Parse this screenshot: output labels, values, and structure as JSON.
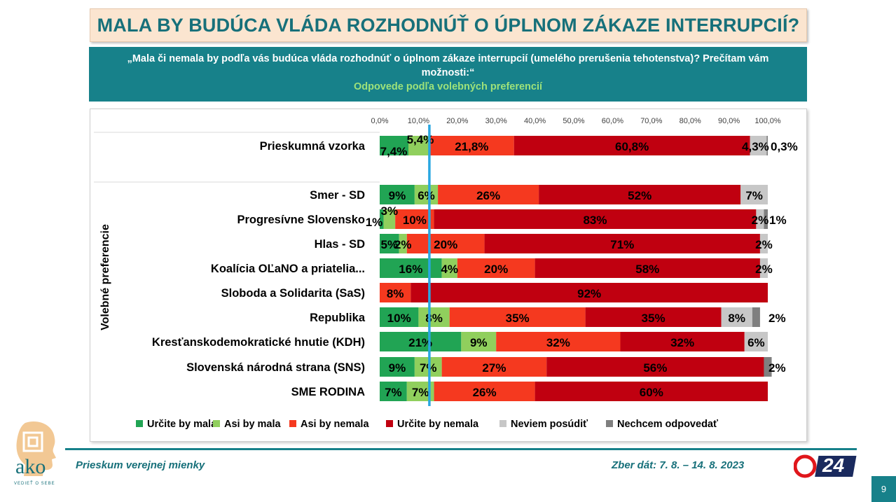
{
  "header": {
    "title": "MALA BY BUDÚCA VLÁDA ROZHODNÚŤ O ÚPLNOM ZÁKAZE INTERRUPCIÍ?",
    "question": "„Mala či nemala by podľa vás budúca vláda rozhodnúť o úplnom zákaze interrupcií (umelého prerušenia tehotenstva)? Prečítam vám možnosti:“",
    "subtitle": "Odpovede podľa volebných preferencií"
  },
  "chart_data": {
    "type": "bar",
    "orientation": "horizontal",
    "stacked": true,
    "xlim": [
      0,
      100
    ],
    "x_ticks": [
      "0,0%",
      "10,0%",
      "20,0%",
      "30,0%",
      "40,0%",
      "50,0%",
      "60,0%",
      "70,0%",
      "80,0%",
      "90,0%",
      "100,0%"
    ],
    "ylabel": "Volebné preferencie",
    "reference_line_x": 12.8,
    "legend_position": "bottom",
    "series": [
      {
        "name": "Určite by mala",
        "color": "#21a454"
      },
      {
        "name": "Asi by mala",
        "color": "#90cf5d"
      },
      {
        "name": "Asi by nemala",
        "color": "#f5391f"
      },
      {
        "name": "Určite by nemala",
        "color": "#c00010"
      },
      {
        "name": "Neviem posúdiť",
        "color": "#c7c7c7"
      },
      {
        "name": "Nechcem odpovedať",
        "color": "#7f7f7f"
      }
    ],
    "rows": [
      {
        "category": "Prieskumná vzorka",
        "values": [
          7.4,
          5.4,
          21.8,
          60.8,
          4.3,
          0.3
        ],
        "labels": [
          "7,4%",
          "5,4%",
          "21,8%",
          "60,8%",
          "4,3%",
          "0,3%"
        ]
      },
      {
        "category": "Smer - SD",
        "values": [
          9,
          6,
          26,
          52,
          7,
          0
        ],
        "labels": [
          "9%",
          "6%",
          "26%",
          "52%",
          "7%",
          ""
        ]
      },
      {
        "category": "Progresívne Slovensko",
        "values": [
          1,
          3,
          10,
          83,
          2,
          1
        ],
        "labels": [
          "1%",
          "3%",
          "10%",
          "83%",
          "2%",
          "1%"
        ]
      },
      {
        "category": "Hlas - SD",
        "values": [
          5,
          2,
          20,
          71,
          2,
          0
        ],
        "labels": [
          "5%",
          "2%",
          "20%",
          "71%",
          "2%",
          ""
        ]
      },
      {
        "category": "Koalícia OĽaNO a priatelia...",
        "values": [
          16,
          4,
          20,
          58,
          2,
          0
        ],
        "labels": [
          "16%",
          "4%",
          "20%",
          "58%",
          "2%",
          ""
        ]
      },
      {
        "category": "Sloboda a Solidarita (SaS)",
        "values": [
          0,
          0,
          8,
          92,
          0,
          0
        ],
        "labels": [
          "",
          "",
          "8%",
          "92%",
          "",
          ""
        ]
      },
      {
        "category": "Republika",
        "values": [
          10,
          8,
          35,
          35,
          8,
          2
        ],
        "labels": [
          "10%",
          "8%",
          "35%",
          "35%",
          "8%",
          "2%"
        ]
      },
      {
        "category": "Kresťanskodemokratické hnutie (KDH)",
        "values": [
          21,
          9,
          32,
          32,
          6,
          0
        ],
        "labels": [
          "21%",
          "9%",
          "32%",
          "32%",
          "6%",
          ""
        ]
      },
      {
        "category": "Slovenská národná strana (SNS)",
        "values": [
          9,
          7,
          27,
          56,
          0,
          2
        ],
        "labels": [
          "9%",
          "7%",
          "27%",
          "56%",
          "",
          "2%"
        ]
      },
      {
        "category": "SME RODINA",
        "values": [
          7,
          7,
          26,
          60,
          0,
          0
        ],
        "labels": [
          "7%",
          "7%",
          "26%",
          "60%",
          "",
          ""
        ]
      }
    ]
  },
  "footer": {
    "left": "Prieskum verejnej mienky",
    "right": "Zber dát: 7. 8. – 14. 8. 2023",
    "page": "9",
    "logo_ako_text": "ako",
    "logo_ako_tagline": "VEDIEŤ O SEBE",
    "logo_tv_text": "24"
  }
}
